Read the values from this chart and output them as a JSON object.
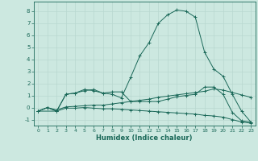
{
  "xlabel": "Humidex (Indice chaleur)",
  "bg_color": "#cce8e0",
  "grid_color": "#b8d8d0",
  "line_color": "#1a6858",
  "xlim": [
    -0.5,
    23.5
  ],
  "ylim": [
    -1.5,
    8.8
  ],
  "yticks": [
    -1,
    0,
    1,
    2,
    3,
    4,
    5,
    6,
    7,
    8
  ],
  "xticks": [
    0,
    1,
    2,
    3,
    4,
    5,
    6,
    7,
    8,
    9,
    10,
    11,
    12,
    13,
    14,
    15,
    16,
    17,
    18,
    19,
    20,
    21,
    22,
    23
  ],
  "series": [
    {
      "x": [
        0,
        1,
        2,
        3,
        4,
        5,
        6,
        7,
        8,
        9,
        10,
        11,
        12,
        13,
        14,
        15,
        16,
        17,
        18,
        19,
        20,
        21,
        22,
        23
      ],
      "y": [
        -0.3,
        0.0,
        -0.3,
        1.1,
        1.2,
        1.5,
        1.4,
        1.2,
        1.3,
        1.3,
        0.5,
        0.5,
        0.5,
        0.5,
        0.7,
        0.9,
        1.0,
        1.1,
        1.7,
        1.7,
        1.1,
        -0.4,
        -1.1,
        -1.2
      ]
    },
    {
      "x": [
        0,
        1,
        2,
        3,
        4,
        5,
        6,
        7,
        8,
        9,
        10,
        11,
        12,
        13,
        14,
        15,
        16,
        17,
        18,
        19,
        20,
        21,
        22,
        23
      ],
      "y": [
        -0.3,
        0.0,
        -0.2,
        0.05,
        0.1,
        0.15,
        0.2,
        0.2,
        0.3,
        0.4,
        0.5,
        0.6,
        0.7,
        0.85,
        0.95,
        1.05,
        1.15,
        1.25,
        1.35,
        1.55,
        1.45,
        1.25,
        1.05,
        0.85
      ]
    },
    {
      "x": [
        0,
        1,
        2,
        3,
        4,
        5,
        6,
        7,
        8,
        9,
        10,
        11,
        12,
        13,
        14,
        15,
        16,
        17,
        18,
        19,
        20,
        21,
        22,
        23
      ],
      "y": [
        -0.3,
        0.0,
        -0.3,
        -0.05,
        -0.05,
        0.0,
        -0.05,
        -0.1,
        -0.1,
        -0.15,
        -0.2,
        -0.25,
        -0.3,
        -0.35,
        -0.4,
        -0.45,
        -0.5,
        -0.55,
        -0.65,
        -0.7,
        -0.8,
        -1.0,
        -1.2,
        -1.3
      ]
    },
    {
      "x": [
        0,
        2,
        3,
        4,
        5,
        6,
        7,
        8,
        9,
        10,
        11,
        12,
        13,
        14,
        15,
        16,
        17,
        18,
        19,
        20,
        21,
        22,
        23
      ],
      "y": [
        -0.3,
        -0.3,
        1.1,
        1.2,
        1.4,
        1.5,
        1.2,
        1.1,
        0.8,
        2.5,
        4.3,
        5.4,
        7.0,
        7.7,
        8.1,
        8.0,
        7.5,
        4.6,
        3.2,
        2.6,
        1.1,
        -0.3,
        -1.2
      ]
    }
  ]
}
